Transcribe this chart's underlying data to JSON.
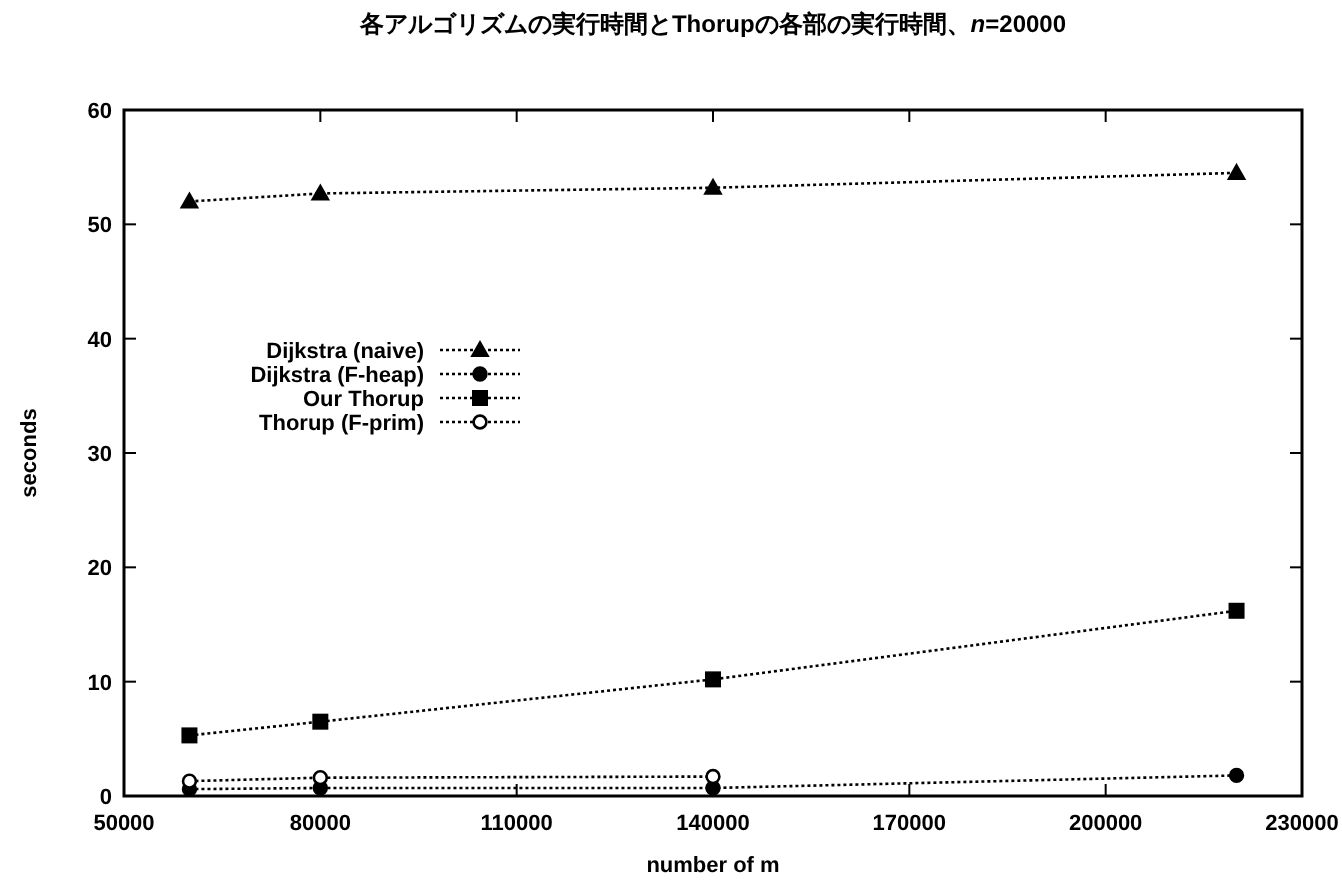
{
  "chart_data": {
    "type": "line",
    "title": "各アルゴリズムの実行時間とThorupの各部の実行時間、*n*=20000",
    "xlabel": "number of m",
    "ylabel": "seconds",
    "x": [
      60000,
      80000,
      140000,
      220000
    ],
    "xlim": [
      50000,
      230000
    ],
    "xticks": [
      50000,
      80000,
      110000,
      140000,
      170000,
      200000,
      230000
    ],
    "ylim": [
      0,
      60
    ],
    "yticks": [
      0,
      10,
      20,
      30,
      40,
      50,
      60
    ],
    "legend": "left",
    "line_style": "dotted",
    "grid": false,
    "series": [
      {
        "name": "Dijkstra (naive)",
        "color": "#000000",
        "marker": "triangle",
        "values": [
          52,
          52.7,
          53.2,
          54.5
        ]
      },
      {
        "name": "Dijkstra (F-heap)",
        "color": "#000000",
        "marker": "circle",
        "values": [
          0.6,
          0.7,
          0.7,
          1.8
        ]
      },
      {
        "name": "Our Thorup",
        "color": "#000000",
        "marker": "square",
        "values": [
          5.3,
          6.5,
          10.2,
          16.2
        ]
      },
      {
        "name": "Thorup (F-prim)",
        "color": "#000000",
        "marker": "circle",
        "values": [
          1.3,
          1.6,
          1.7,
          null
        ]
      }
    ]
  }
}
